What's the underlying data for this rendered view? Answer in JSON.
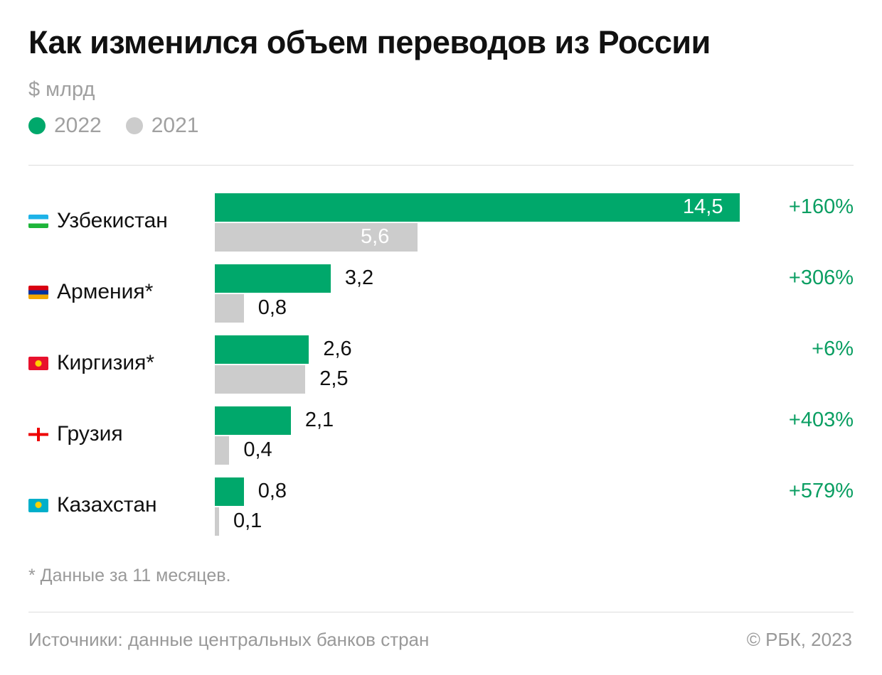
{
  "chart_data": {
    "type": "bar",
    "orientation": "horizontal",
    "title": "Как изменился объем переводов из России",
    "unit": "$ млрд",
    "categories": [
      "Узбекистан",
      "Армения*",
      "Киргизия*",
      "Грузия",
      "Казахстан"
    ],
    "flags": [
      "uzbekistan-flag",
      "armenia-flag",
      "kyrgyzstan-flag",
      "georgia-flag",
      "kazakhstan-flag"
    ],
    "series": [
      {
        "name": "2022",
        "color": "#00a86b",
        "values": [
          14.5,
          3.2,
          2.6,
          2.1,
          0.8
        ],
        "labels": [
          "14,5",
          "3,2",
          "2,6",
          "2,1",
          "0,8"
        ]
      },
      {
        "name": "2021",
        "color": "#cccccc",
        "values": [
          5.6,
          0.8,
          2.5,
          0.4,
          0.1
        ],
        "labels": [
          "5,6",
          "0,8",
          "2,5",
          "0,4",
          "0,1"
        ]
      }
    ],
    "changes": [
      "+160%",
      "+306%",
      "+6%",
      "+403%",
      "+579%"
    ],
    "legend": "top-left",
    "grid": false
  },
  "footnote": "* Данные за 11 месяцев.",
  "source": "Источники: данные центральных банков стран",
  "copyright": "© РБК, 2023"
}
